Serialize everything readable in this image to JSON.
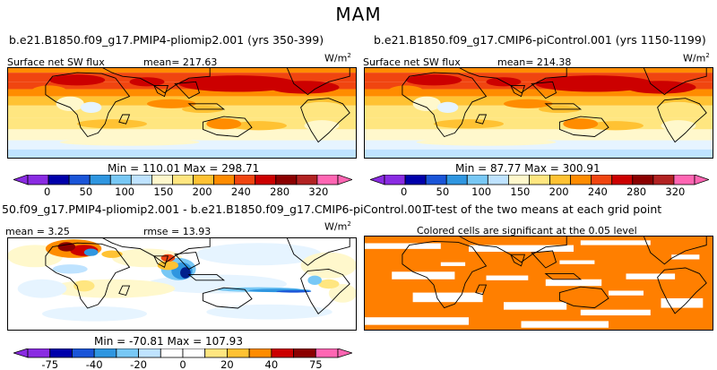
{
  "suptitle": "MAM",
  "colors": {
    "plus": [
      "#fff8cc",
      "#ffe680",
      "#ffc233",
      "#ff8c00",
      "#f04510",
      "#cc0000",
      "#8b0000"
    ],
    "minus": [
      "#e6f4ff",
      "#bfe3ff",
      "#78c8f5",
      "#2f96e0",
      "#1a55d8",
      "#00208c"
    ],
    "endLow": "#8a2be2",
    "endHigh": "#ff66b3",
    "land": "#000000",
    "signif": "#ff7f00"
  },
  "panels": {
    "a": {
      "title": "b.e21.B1850.f09_g17.PMIP4-pliomip2.001 (yrs 350-399)",
      "var_label": "Surface net SW flux",
      "mean_label": "mean= 217.63",
      "units": "W/m",
      "units_exp": "2",
      "minmax": "Min = 110.01  Max = 298.71",
      "colorbar_ticks": [
        "0",
        "50",
        "100",
        "150",
        "200",
        "240",
        "280",
        "320"
      ]
    },
    "b": {
      "title": "b.e21.B1850.f09_g17.CMIP6-piControl.001 (yrs 1150-1199)",
      "var_label": "Surface net SW flux",
      "mean_label": "mean= 214.38",
      "units": "W/m",
      "units_exp": "2",
      "minmax": "Min =  87.77  Max = 300.91",
      "colorbar_ticks": [
        "0",
        "50",
        "100",
        "150",
        "200",
        "240",
        "280",
        "320"
      ]
    },
    "c": {
      "title": "50.f09_g17.PMIP4-pliomip2.001 - b.e21.B1850.f09_g17.CMIP6-piControl.001",
      "mean_label": "mean =   3.25",
      "rmse_label": "rmse =  13.93",
      "units": "W/m",
      "units_exp": "2",
      "minmax": "Min = -70.81  Max = 107.93",
      "colorbar_ticks": [
        "-75",
        "-40",
        "-20",
        "0",
        "20",
        "40",
        "75"
      ]
    },
    "d": {
      "title": "T-test of the two means at each grid point",
      "subtitle": "Colored cells are significant at the 0.05 level"
    }
  },
  "chart_data": [
    {
      "type": "heatmap",
      "panel": "a",
      "title": "b.e21.B1850.f09_g17.PMIP4-pliomip2.001 (yrs 350-399)",
      "variable": "Surface net SW flux",
      "units": "W/m2",
      "mean": 217.63,
      "min": 110.01,
      "max": 298.71,
      "levels": [
        0,
        50,
        100,
        150,
        200,
        240,
        280,
        320
      ]
    },
    {
      "type": "heatmap",
      "panel": "b",
      "title": "b.e21.B1850.f09_g17.CMIP6-piControl.001 (yrs 1150-1199)",
      "variable": "Surface net SW flux",
      "units": "W/m2",
      "mean": 214.38,
      "min": 87.77,
      "max": 300.91,
      "levels": [
        0,
        50,
        100,
        150,
        200,
        240,
        280,
        320
      ]
    },
    {
      "type": "heatmap",
      "panel": "c",
      "title": "50.f09_g17.PMIP4-pliomip2.001 - b.e21.B1850.f09_g17.CMIP6-piControl.001",
      "units": "W/m2",
      "mean": 3.25,
      "rmse": 13.93,
      "min": -70.81,
      "max": 107.93,
      "levels": [
        -75,
        -40,
        -20,
        0,
        20,
        40,
        75
      ]
    },
    {
      "type": "heatmap",
      "panel": "d",
      "title": "T-test of the two means at each grid point",
      "note": "Colored cells are significant at the 0.05 level",
      "significance_level": 0.05
    }
  ]
}
